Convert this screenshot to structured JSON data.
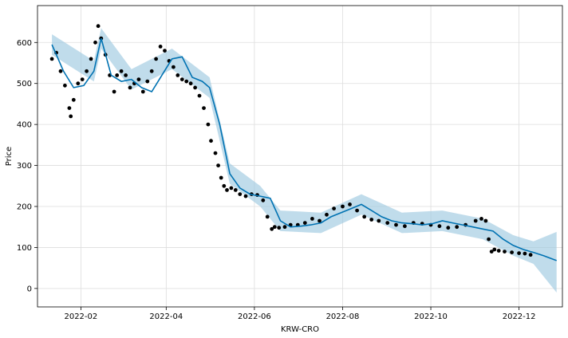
{
  "chart_data": {
    "type": "line",
    "title": "",
    "xlabel": "KRW-CRO",
    "ylabel": "Price",
    "grid": true,
    "legend": "none",
    "xlim": [
      "2022-01-02",
      "2022-12-31"
    ],
    "ylim": [
      -45,
      690
    ],
    "x_ticks": [
      "2022-02-01",
      "2022-04-01",
      "2022-06-01",
      "2022-08-01",
      "2022-10-01",
      "2022-12-01"
    ],
    "x_tick_labels": [
      "2022-02",
      "2022-04",
      "2022-06",
      "2022-08",
      "2022-10",
      "2022-12"
    ],
    "y_ticks": [
      0,
      100,
      200,
      300,
      400,
      500,
      600
    ],
    "y_tick_labels": [
      "0",
      "100",
      "200",
      "300",
      "400",
      "500",
      "600"
    ],
    "colors": {
      "trend": "#0072B2",
      "band": "#9ecae1",
      "observed": "#000000",
      "grid": "#dddddd"
    },
    "series": [
      {
        "kind": "observed",
        "marker": "dot",
        "x": [
          "2022-01-12",
          "2022-01-15",
          "2022-01-18",
          "2022-01-21",
          "2022-01-24",
          "2022-01-25",
          "2022-01-27",
          "2022-01-30",
          "2022-02-02",
          "2022-02-05",
          "2022-02-08",
          "2022-02-11",
          "2022-02-13",
          "2022-02-15",
          "2022-02-18",
          "2022-02-21",
          "2022-02-24",
          "2022-02-26",
          "2022-03-01",
          "2022-03-04",
          "2022-03-07",
          "2022-03-10",
          "2022-03-13",
          "2022-03-16",
          "2022-03-19",
          "2022-03-22",
          "2022-03-25",
          "2022-03-28",
          "2022-03-31",
          "2022-04-03",
          "2022-04-06",
          "2022-04-09",
          "2022-04-12",
          "2022-04-15",
          "2022-04-18",
          "2022-04-21",
          "2022-04-24",
          "2022-04-27",
          "2022-04-30",
          "2022-05-02",
          "2022-05-05",
          "2022-05-07",
          "2022-05-09",
          "2022-05-11",
          "2022-05-13",
          "2022-05-16",
          "2022-05-19",
          "2022-05-22",
          "2022-05-26",
          "2022-05-30",
          "2022-06-03",
          "2022-06-07",
          "2022-06-10",
          "2022-06-13",
          "2022-06-15",
          "2022-06-18",
          "2022-06-22",
          "2022-06-26",
          "2022-07-01",
          "2022-07-06",
          "2022-07-11",
          "2022-07-16",
          "2022-07-21",
          "2022-07-26",
          "2022-08-01",
          "2022-08-06",
          "2022-08-11",
          "2022-08-16",
          "2022-08-21",
          "2022-08-26",
          "2022-09-01",
          "2022-09-07",
          "2022-09-13",
          "2022-09-19",
          "2022-09-25",
          "2022-10-01",
          "2022-10-07",
          "2022-10-13",
          "2022-10-19",
          "2022-10-25",
          "2022-11-01",
          "2022-11-05",
          "2022-11-08",
          "2022-11-10",
          "2022-11-12",
          "2022-11-14",
          "2022-11-17",
          "2022-11-21",
          "2022-11-26",
          "2022-12-01",
          "2022-12-05",
          "2022-12-09"
        ],
        "y": [
          560,
          575,
          530,
          495,
          440,
          420,
          460,
          500,
          510,
          530,
          560,
          600,
          640,
          610,
          570,
          520,
          480,
          520,
          530,
          520,
          490,
          500,
          510,
          480,
          505,
          530,
          560,
          590,
          580,
          555,
          540,
          520,
          510,
          505,
          500,
          490,
          470,
          440,
          400,
          360,
          330,
          300,
          270,
          250,
          240,
          245,
          240,
          230,
          225,
          230,
          228,
          215,
          175,
          145,
          150,
          148,
          150,
          155,
          155,
          160,
          170,
          165,
          180,
          195,
          200,
          205,
          190,
          175,
          168,
          165,
          160,
          155,
          152,
          160,
          158,
          155,
          152,
          148,
          150,
          155,
          165,
          170,
          165,
          120,
          90,
          95,
          92,
          90,
          88,
          86,
          85,
          82
        ]
      },
      {
        "kind": "trend",
        "name": "",
        "x": [
          "2022-01-12",
          "2022-01-20",
          "2022-01-27",
          "2022-02-03",
          "2022-02-10",
          "2022-02-15",
          "2022-02-22",
          "2022-03-01",
          "2022-03-08",
          "2022-03-15",
          "2022-03-22",
          "2022-03-29",
          "2022-04-05",
          "2022-04-12",
          "2022-04-19",
          "2022-04-26",
          "2022-05-01",
          "2022-05-08",
          "2022-05-15",
          "2022-05-22",
          "2022-05-29",
          "2022-06-05",
          "2022-06-12",
          "2022-06-19",
          "2022-06-26",
          "2022-07-03",
          "2022-07-10",
          "2022-07-17",
          "2022-07-24",
          "2022-07-31",
          "2022-08-07",
          "2022-08-14",
          "2022-08-21",
          "2022-08-28",
          "2022-09-04",
          "2022-09-11",
          "2022-09-18",
          "2022-09-25",
          "2022-10-02",
          "2022-10-09",
          "2022-10-16",
          "2022-10-23",
          "2022-10-30",
          "2022-11-06",
          "2022-11-13",
          "2022-11-20",
          "2022-11-27",
          "2022-12-04",
          "2022-12-11",
          "2022-12-18",
          "2022-12-27"
        ],
        "y": [
          595,
          530,
          490,
          495,
          530,
          610,
          520,
          505,
          510,
          490,
          480,
          520,
          560,
          565,
          515,
          505,
          490,
          400,
          280,
          245,
          230,
          225,
          220,
          165,
          150,
          152,
          155,
          160,
          175,
          185,
          195,
          205,
          190,
          175,
          165,
          160,
          158,
          155,
          158,
          165,
          160,
          155,
          150,
          145,
          140,
          120,
          105,
          95,
          88,
          80,
          68
        ]
      },
      {
        "kind": "band_upper",
        "x": [
          "2022-01-12",
          "2022-02-10",
          "2022-02-15",
          "2022-03-08",
          "2022-04-05",
          "2022-05-01",
          "2022-05-15",
          "2022-06-05",
          "2022-06-19",
          "2022-07-17",
          "2022-08-14",
          "2022-09-11",
          "2022-10-09",
          "2022-11-06",
          "2022-11-27",
          "2022-12-11",
          "2022-12-27"
        ],
        "y": [
          620,
          555,
          635,
          535,
          585,
          515,
          305,
          250,
          190,
          185,
          230,
          185,
          190,
          170,
          130,
          115,
          138
        ]
      },
      {
        "kind": "band_lower",
        "x": [
          "2022-01-12",
          "2022-02-10",
          "2022-02-15",
          "2022-03-08",
          "2022-04-05",
          "2022-05-01",
          "2022-05-15",
          "2022-06-05",
          "2022-06-19",
          "2022-07-17",
          "2022-08-14",
          "2022-09-11",
          "2022-10-09",
          "2022-11-06",
          "2022-11-27",
          "2022-12-11",
          "2022-12-27"
        ],
        "y": [
          570,
          505,
          585,
          485,
          535,
          465,
          255,
          200,
          140,
          135,
          180,
          135,
          140,
          120,
          80,
          60,
          -10
        ]
      }
    ]
  }
}
